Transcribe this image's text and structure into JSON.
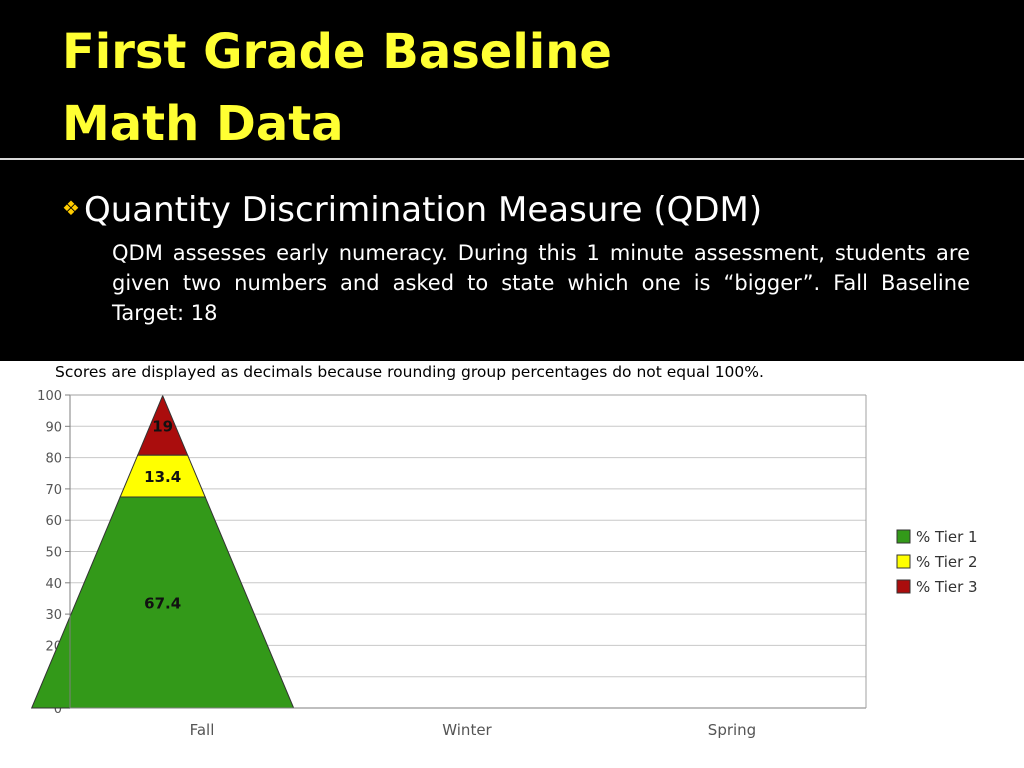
{
  "slide": {
    "title_line1": "First Grade Baseline",
    "title_line2": "Math Data",
    "bullet_heading": "Quantity Discrimination Measure (QDM)",
    "description": "QDM assesses early numeracy.  During  this  1 minute assessment, students are given two numbers and asked to state which one is “bigger”.  Fall Baseline Target: 18",
    "chart_note": "Scores are displayed as decimals because rounding group percentages do not equal 100%.",
    "colors": {
      "title": "#ffff33",
      "background": "#000000",
      "bullet": "#ffcc00"
    },
    "bullet_icon": "diamond-bullet-icon"
  },
  "chart_data": {
    "type": "bar",
    "subtype": "stacked-pyramid",
    "categories": [
      "Fall",
      "Winter",
      "Spring"
    ],
    "series": [
      {
        "name": "% Tier 1",
        "color": "#339919",
        "values": [
          67.4,
          null,
          null
        ]
      },
      {
        "name": "% Tier 2",
        "color": "#ffff00",
        "values": [
          13.4,
          null,
          null
        ]
      },
      {
        "name": "% Tier 3",
        "color": "#aa0d0d",
        "values": [
          19,
          null,
          null
        ]
      }
    ],
    "data_labels": [
      "67.4",
      "13.4",
      "19"
    ],
    "ylim": [
      0,
      100
    ],
    "yticks": [
      0,
      10,
      20,
      30,
      40,
      50,
      60,
      70,
      80,
      90,
      100
    ],
    "grid": true,
    "legend": "right"
  }
}
